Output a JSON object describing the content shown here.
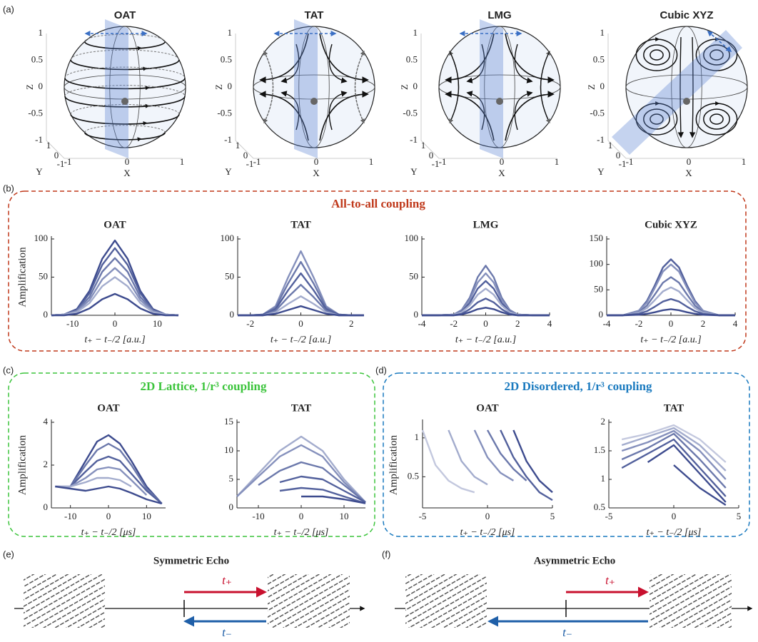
{
  "panels": {
    "a": "(a)",
    "b": "(b)",
    "c": "(c)",
    "d": "(d)",
    "e": "(e)",
    "f": "(f)"
  },
  "spheres": {
    "titles": [
      "OAT",
      "TAT",
      "LMG",
      "Cubic XYZ"
    ],
    "z_label": "Z",
    "x_label": "X",
    "y_label": "Y",
    "z_ticks": [
      "1",
      "0.5",
      "0",
      "-0.5",
      "-1"
    ],
    "x_ticks": [
      "-1",
      "0",
      "1"
    ],
    "y_ticks": [
      "1",
      "0",
      "-1"
    ]
  },
  "groups": {
    "all_to_all": "All-to-all coupling",
    "lattice": "2D Lattice, 1/r³ coupling",
    "disordered": "2D Disordered, 1/r³ coupling"
  },
  "echo": {
    "symmetric": {
      "title": "Symmetric Echo",
      "t_plus": "t₊",
      "t_minus": "t₋"
    },
    "asymmetric": {
      "title": "Asymmetric Echo",
      "t_plus": "t₊",
      "t_minus": "t₋"
    }
  },
  "chart_data": [
    {
      "type": "line",
      "title": "OAT",
      "y_label": "Amplification",
      "x_label": "t₊ − t₋/2 [a.u.]",
      "x": [
        -15,
        -12,
        -9,
        -6,
        -3,
        0,
        3,
        6,
        9,
        12,
        15
      ],
      "xlim": [
        -15,
        15
      ],
      "xticks": [
        -10,
        0,
        10
      ],
      "ylim": [
        0,
        100
      ],
      "yticks": [
        0,
        50,
        100
      ],
      "series": [
        {
          "color": "#3d4b8e",
          "values": [
            0,
            1,
            8,
            32,
            74,
            98,
            74,
            32,
            8,
            1,
            0
          ]
        },
        {
          "color": "#52609c",
          "values": [
            0,
            1,
            7,
            29,
            66,
            88,
            66,
            29,
            7,
            1,
            0
          ]
        },
        {
          "color": "#6b78ab",
          "values": [
            0,
            1,
            6,
            24,
            57,
            75,
            57,
            24,
            6,
            1,
            0
          ]
        },
        {
          "color": "#8590bc",
          "values": [
            0,
            1,
            5,
            20,
            47,
            62,
            47,
            20,
            5,
            1,
            0
          ]
        },
        {
          "color": "#a3accd",
          "values": [
            0,
            1,
            4,
            16,
            38,
            50,
            38,
            16,
            4,
            1,
            0
          ]
        },
        {
          "color": "#3d4b8e",
          "values": [
            0,
            0,
            2,
            9,
            21,
            28,
            21,
            9,
            2,
            0,
            0
          ]
        }
      ]
    },
    {
      "type": "line",
      "title": "TAT",
      "x_label": "t₊ − t₋/2 [a.u.]",
      "x": [
        -2.5,
        -2,
        -1.5,
        -1,
        -0.5,
        0,
        0.5,
        1,
        1.5,
        2,
        2.5
      ],
      "xlim": [
        -2.5,
        2.5
      ],
      "xticks": [
        -2,
        0,
        2
      ],
      "ylim": [
        0,
        100
      ],
      "yticks": [
        0,
        50,
        100
      ],
      "series": [
        {
          "color": "#8590bc",
          "values": [
            0,
            0,
            1,
            12,
            50,
            84,
            50,
            12,
            1,
            0,
            0
          ]
        },
        {
          "color": "#6b78ab",
          "values": [
            0,
            0,
            1,
            10,
            42,
            70,
            42,
            10,
            1,
            0,
            0
          ]
        },
        {
          "color": "#52609c",
          "values": [
            0,
            0,
            1,
            8,
            33,
            55,
            33,
            8,
            1,
            0,
            0
          ]
        },
        {
          "color": "#6b78ab",
          "values": [
            0,
            0,
            0,
            6,
            24,
            40,
            24,
            6,
            0,
            0,
            0
          ]
        },
        {
          "color": "#a3accd",
          "values": [
            0,
            0,
            0,
            4,
            15,
            25,
            15,
            4,
            0,
            0,
            0
          ]
        },
        {
          "color": "#3d4b8e",
          "values": [
            0,
            0,
            0,
            2,
            7,
            12,
            7,
            2,
            0,
            0,
            0
          ]
        }
      ]
    },
    {
      "type": "line",
      "title": "LMG",
      "x_label": "t₊ − t₋/2 [a.u.]",
      "x": [
        -4,
        -3,
        -2,
        -1.5,
        -1,
        -0.5,
        0,
        0.5,
        1,
        1.5,
        2,
        3,
        4
      ],
      "xlim": [
        -4,
        4
      ],
      "xticks": [
        -4,
        -2,
        0,
        2,
        4
      ],
      "ylim": [
        0,
        100
      ],
      "yticks": [
        0,
        50,
        100
      ],
      "series": [
        {
          "color": "#6b78ab",
          "values": [
            0,
            0,
            1,
            7,
            23,
            50,
            65,
            50,
            23,
            7,
            1,
            0,
            0
          ]
        },
        {
          "color": "#8590bc",
          "values": [
            0,
            0,
            1,
            6,
            20,
            43,
            55,
            43,
            20,
            6,
            1,
            0,
            0
          ]
        },
        {
          "color": "#52609c",
          "values": [
            0,
            0,
            1,
            5,
            16,
            35,
            45,
            35,
            16,
            5,
            1,
            0,
            0
          ]
        },
        {
          "color": "#a3accd",
          "values": [
            0,
            0,
            1,
            4,
            13,
            27,
            35,
            27,
            13,
            4,
            1,
            0,
            0
          ]
        },
        {
          "color": "#52609c",
          "values": [
            0,
            0,
            0,
            2,
            8,
            17,
            22,
            17,
            8,
            2,
            0,
            0,
            0
          ]
        },
        {
          "color": "#3d4b8e",
          "values": [
            0,
            0,
            0,
            1,
            4,
            8,
            10,
            8,
            4,
            1,
            0,
            0,
            0
          ]
        }
      ]
    },
    {
      "type": "line",
      "title": "Cubic XYZ",
      "x_label": "t₊ − t₋/2 [a.u.]",
      "x": [
        -4,
        -3,
        -2,
        -1.5,
        -1,
        -0.5,
        0,
        0.5,
        1,
        1.5,
        2,
        3,
        4
      ],
      "xlim": [
        -4,
        4
      ],
      "xticks": [
        -4,
        -2,
        0,
        2,
        4
      ],
      "ylim": [
        0,
        150
      ],
      "yticks": [
        0,
        50,
        100,
        150
      ],
      "series": [
        {
          "color": "#52609c",
          "values": [
            0,
            0,
            9,
            28,
            59,
            94,
            110,
            94,
            59,
            28,
            9,
            0,
            0
          ]
        },
        {
          "color": "#8590bc",
          "values": [
            0,
            0,
            9,
            25,
            54,
            86,
            100,
            86,
            54,
            25,
            9,
            0,
            0
          ]
        },
        {
          "color": "#6b78ab",
          "values": [
            0,
            0,
            6,
            19,
            41,
            64,
            75,
            64,
            41,
            19,
            6,
            0,
            0
          ]
        },
        {
          "color": "#a3accd",
          "values": [
            0,
            0,
            5,
            14,
            30,
            47,
            55,
            47,
            30,
            14,
            5,
            0,
            0
          ]
        },
        {
          "color": "#52609c",
          "values": [
            0,
            0,
            3,
            8,
            17,
            27,
            32,
            27,
            17,
            8,
            3,
            0,
            0
          ]
        },
        {
          "color": "#3d4b8e",
          "values": [
            0,
            0,
            1,
            3,
            6,
            10,
            12,
            10,
            6,
            3,
            1,
            0,
            0
          ]
        }
      ]
    },
    {
      "type": "line",
      "title": "OAT",
      "y_label": "Amplification",
      "x_label": "t₊ − t₋/2 [μs]",
      "x": [
        -14,
        -10,
        -6,
        -3,
        0,
        3,
        6,
        10,
        14
      ],
      "xlim": [
        -15,
        15
      ],
      "xticks": [
        -10,
        0,
        10
      ],
      "ylim": [
        0,
        4
      ],
      "yticks": [
        0,
        2,
        4
      ],
      "series": [
        {
          "color": "#3d4b8e",
          "values": [
            null,
            1.0,
            2.2,
            3.1,
            3.4,
            3.0,
            2.2,
            1.0,
            0.2
          ]
        },
        {
          "color": "#6b78ab",
          "values": [
            null,
            1.0,
            2.0,
            2.7,
            3.0,
            2.7,
            2.0,
            0.9,
            0.2
          ]
        },
        {
          "color": "#52609c",
          "values": [
            null,
            1.0,
            1.7,
            2.2,
            2.4,
            2.2,
            1.6,
            0.8,
            0.2
          ]
        },
        {
          "color": "#8590bc",
          "values": [
            1.0,
            1.0,
            1.4,
            1.8,
            1.9,
            1.8,
            1.3,
            0.6,
            null
          ]
        },
        {
          "color": "#a3accd",
          "values": [
            1.0,
            1.0,
            1.2,
            1.4,
            1.4,
            1.3,
            1.0,
            null,
            null
          ]
        },
        {
          "color": "#3d4b8e",
          "values": [
            1.0,
            0.9,
            0.8,
            0.9,
            1.0,
            0.9,
            0.7,
            0.4,
            0.2
          ]
        }
      ]
    },
    {
      "type": "line",
      "title": "TAT",
      "x_label": "t₊ − t₋/2 [μs]",
      "x": [
        -15,
        -10,
        -5,
        0,
        5,
        10,
        15
      ],
      "xlim": [
        -15,
        15
      ],
      "xticks": [
        -10,
        0,
        10
      ],
      "ylim": [
        0,
        15
      ],
      "yticks": [
        0,
        5,
        10,
        15
      ],
      "series": [
        {
          "color": "#a3accd",
          "values": [
            2,
            6,
            10,
            12.5,
            10,
            5,
            1
          ]
        },
        {
          "color": "#8590bc",
          "values": [
            2,
            5.5,
            9,
            11,
            9,
            4.5,
            1
          ]
        },
        {
          "color": "#6b78ab",
          "values": [
            null,
            4,
            6.5,
            8,
            7,
            4,
            1
          ]
        },
        {
          "color": "#52609c",
          "values": [
            null,
            null,
            4.5,
            5.5,
            5,
            3,
            1
          ]
        },
        {
          "color": "#52609c",
          "values": [
            null,
            null,
            3,
            3.5,
            3.2,
            2,
            0.8
          ]
        },
        {
          "color": "#3d4b8e",
          "values": [
            null,
            null,
            null,
            2,
            2,
            1.5,
            0.8
          ]
        }
      ]
    },
    {
      "type": "line",
      "title": "OAT",
      "y_label": "Amplification",
      "x_label": "t₊ − t₋/2 [μs]",
      "x": [
        -5,
        -4,
        -3,
        -2,
        -1,
        0,
        1,
        2,
        3,
        4,
        5
      ],
      "xlim": [
        -5,
        5
      ],
      "xticks": [
        -5,
        0,
        5
      ],
      "ylim": [
        0.1,
        1.2
      ],
      "yticks": [
        0.5,
        1
      ],
      "series": [
        {
          "color": "#c3c8de",
          "values": [
            1.1,
            0.65,
            0.45,
            0.35,
            0.3,
            null,
            null,
            null,
            null,
            null,
            null
          ]
        },
        {
          "color": "#a3accd",
          "values": [
            null,
            null,
            1.1,
            0.7,
            0.5,
            0.4,
            null,
            null,
            null,
            null,
            null
          ]
        },
        {
          "color": "#8590bc",
          "values": [
            null,
            null,
            null,
            null,
            1.1,
            0.75,
            0.55,
            0.45,
            null,
            null,
            null
          ]
        },
        {
          "color": "#6b78ab",
          "values": [
            null,
            null,
            null,
            null,
            null,
            1.1,
            0.8,
            0.6,
            0.45,
            null,
            null
          ]
        },
        {
          "color": "#52609c",
          "values": [
            null,
            null,
            null,
            null,
            null,
            null,
            1.1,
            0.75,
            0.5,
            0.3,
            0.2
          ]
        },
        {
          "color": "#3d4b8e",
          "values": [
            null,
            null,
            null,
            null,
            null,
            null,
            null,
            1.1,
            0.7,
            0.45,
            0.3
          ]
        }
      ]
    },
    {
      "type": "line",
      "title": "TAT",
      "x_label": "t₊ − t₋/2 [μs]",
      "x": [
        -4,
        -2,
        0,
        2,
        4
      ],
      "xlim": [
        -5,
        5
      ],
      "xticks": [
        -5,
        0,
        5
      ],
      "ylim": [
        0.5,
        2
      ],
      "yticks": [
        0.5,
        1,
        1.5,
        2
      ],
      "series": [
        {
          "color": "#c3c8de",
          "values": [
            1.7,
            1.8,
            1.95,
            1.7,
            1.3
          ]
        },
        {
          "color": "#a3accd",
          "values": [
            1.6,
            1.75,
            1.9,
            1.6,
            1.15
          ]
        },
        {
          "color": "#8590bc",
          "values": [
            1.5,
            1.65,
            1.85,
            1.5,
            1.0
          ]
        },
        {
          "color": "#6b78ab",
          "values": [
            1.35,
            1.55,
            1.8,
            1.35,
            0.85
          ]
        },
        {
          "color": "#52609c",
          "values": [
            1.2,
            1.45,
            1.7,
            1.2,
            0.7
          ]
        },
        {
          "color": "#3d4b8e",
          "values": [
            null,
            1.3,
            1.6,
            1.1,
            0.6
          ]
        },
        {
          "color": "#3d4b8e",
          "values": [
            null,
            null,
            1.25,
            0.85,
            0.55
          ]
        }
      ]
    }
  ]
}
